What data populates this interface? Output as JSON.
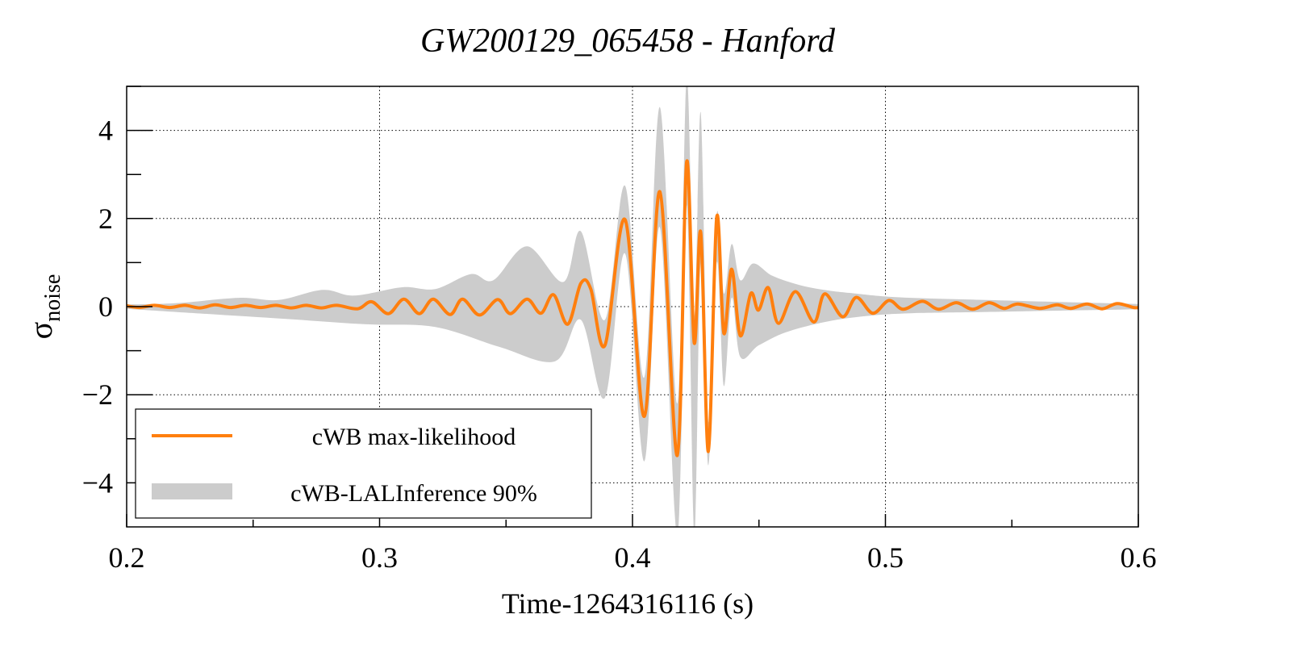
{
  "chart_data": {
    "type": "line",
    "title": "GW200129_065458 - Hanford",
    "xlabel": "Time-1264316116 (s)",
    "ylabel_main": "σ",
    "ylabel_sub": "noise",
    "xlim": [
      0.2,
      0.6
    ],
    "ylim": [
      -5,
      5
    ],
    "xticks": [
      0.2,
      0.3,
      0.4,
      0.5,
      0.6
    ],
    "xtick_labels": [
      "0.2",
      "0.3",
      "0.4",
      "0.5",
      "0.6"
    ],
    "yticks": [
      -4,
      -2,
      0,
      2,
      4
    ],
    "ytick_labels": [
      "−4",
      "−2",
      "0",
      "2",
      "4"
    ],
    "grid": true,
    "legend_position": "bottom-left",
    "colors": {
      "line": "#ff7f0e",
      "band": "#cccccc"
    },
    "series": [
      {
        "name": "cWB max-likelihood",
        "type": "line",
        "points": [
          [
            0.2,
            0.02
          ],
          [
            0.205,
            -0.02
          ],
          [
            0.211,
            0.03
          ],
          [
            0.217,
            -0.02
          ],
          [
            0.223,
            0.03
          ],
          [
            0.229,
            -0.03
          ],
          [
            0.235,
            0.04
          ],
          [
            0.241,
            -0.02
          ],
          [
            0.247,
            0.03
          ],
          [
            0.253,
            -0.02
          ],
          [
            0.259,
            0.03
          ],
          [
            0.265,
            -0.03
          ],
          [
            0.271,
            0.03
          ],
          [
            0.277,
            -0.03
          ],
          [
            0.283,
            0.03
          ],
          [
            0.2913,
            -0.05
          ],
          [
            0.2969,
            0.11
          ],
          [
            0.3035,
            -0.16
          ],
          [
            0.3096,
            0.17
          ],
          [
            0.3157,
            -0.16
          ],
          [
            0.3212,
            0.17
          ],
          [
            0.3279,
            -0.18
          ],
          [
            0.3328,
            0.17
          ],
          [
            0.3395,
            -0.19
          ],
          [
            0.3467,
            0.16
          ],
          [
            0.3517,
            -0.16
          ],
          [
            0.3583,
            0.17
          ],
          [
            0.3638,
            -0.15
          ],
          [
            0.3688,
            0.27
          ],
          [
            0.3744,
            -0.4
          ],
          [
            0.3796,
            0.53
          ],
          [
            0.3835,
            0.4
          ],
          [
            0.3891,
            -0.88
          ],
          [
            0.3971,
            1.97
          ],
          [
            0.4047,
            -2.49
          ],
          [
            0.4108,
            2.61
          ],
          [
            0.4177,
            -3.38
          ],
          [
            0.4214,
            3.28
          ],
          [
            0.4244,
            -0.82
          ],
          [
            0.427,
            1.68
          ],
          [
            0.43,
            -3.29
          ],
          [
            0.4333,
            2.03
          ],
          [
            0.4361,
            -0.6
          ],
          [
            0.4392,
            0.85
          ],
          [
            0.4426,
            -0.66
          ],
          [
            0.4468,
            0.3
          ],
          [
            0.4498,
            -0.08
          ],
          [
            0.4537,
            0.43
          ],
          [
            0.4577,
            -0.38
          ],
          [
            0.4644,
            0.34
          ],
          [
            0.4717,
            -0.35
          ],
          [
            0.476,
            0.29
          ],
          [
            0.4831,
            -0.23
          ],
          [
            0.4885,
            0.21
          ],
          [
            0.495,
            -0.15
          ],
          [
            0.5014,
            0.14
          ],
          [
            0.507,
            -0.06
          ],
          [
            0.5146,
            0.12
          ],
          [
            0.521,
            -0.06
          ],
          [
            0.528,
            0.09
          ],
          [
            0.5345,
            -0.06
          ],
          [
            0.541,
            0.09
          ],
          [
            0.5469,
            -0.04
          ],
          [
            0.5523,
            0.06
          ],
          [
            0.5609,
            -0.04
          ],
          [
            0.5679,
            0.04
          ],
          [
            0.5733,
            -0.04
          ],
          [
            0.5798,
            0.06
          ],
          [
            0.5857,
            -0.05
          ],
          [
            0.5916,
            0.07
          ],
          [
            0.5981,
            -0.02
          ],
          [
            0.6,
            -0.02
          ]
        ]
      },
      {
        "name": "cWB-LALInference 90%",
        "type": "band",
        "upper": [
          [
            0.2,
            0.05
          ],
          [
            0.22,
            0.08
          ],
          [
            0.2443,
            0.2
          ],
          [
            0.26,
            0.15
          ],
          [
            0.2775,
            0.38
          ],
          [
            0.29,
            0.25
          ],
          [
            0.309,
            0.44
          ],
          [
            0.322,
            0.4
          ],
          [
            0.3362,
            0.74
          ],
          [
            0.345,
            0.6
          ],
          [
            0.3583,
            1.37
          ],
          [
            0.3727,
            0.56
          ],
          [
            0.3796,
            1.71
          ],
          [
            0.3891,
            -0.3
          ],
          [
            0.3971,
            2.74
          ],
          [
            0.4047,
            -1.6
          ],
          [
            0.4108,
            4.53
          ],
          [
            0.4177,
            -2.2
          ],
          [
            0.4214,
            5.2
          ],
          [
            0.4244,
            -0.2
          ],
          [
            0.427,
            4.4
          ],
          [
            0.43,
            -2.6
          ],
          [
            0.4333,
            2.1
          ],
          [
            0.4361,
            0.3
          ],
          [
            0.4392,
            1.42
          ],
          [
            0.4426,
            0.6
          ],
          [
            0.4477,
            0.98
          ],
          [
            0.4553,
            0.7
          ],
          [
            0.466,
            0.49
          ],
          [
            0.4768,
            0.37
          ],
          [
            0.4876,
            0.3
          ],
          [
            0.5057,
            0.21
          ],
          [
            0.54,
            0.15
          ],
          [
            0.6,
            0.06
          ]
        ],
        "lower": [
          [
            0.2,
            -0.05
          ],
          [
            0.23,
            -0.16
          ],
          [
            0.2631,
            -0.28
          ],
          [
            0.294,
            -0.4
          ],
          [
            0.3218,
            -0.46
          ],
          [
            0.3472,
            -0.91
          ],
          [
            0.3694,
            -1.24
          ],
          [
            0.3796,
            -0.3
          ],
          [
            0.3891,
            -2.07
          ],
          [
            0.3971,
            1.2
          ],
          [
            0.4047,
            -3.51
          ],
          [
            0.4108,
            1.8
          ],
          [
            0.4177,
            -5.2
          ],
          [
            0.4214,
            2.3
          ],
          [
            0.4244,
            -5.2
          ],
          [
            0.427,
            1.0
          ],
          [
            0.43,
            -3.6
          ],
          [
            0.4333,
            1.0
          ],
          [
            0.4361,
            -1.8
          ],
          [
            0.4392,
            0.2
          ],
          [
            0.4426,
            -1.14
          ],
          [
            0.4499,
            -0.88
          ],
          [
            0.4607,
            -0.58
          ],
          [
            0.4768,
            -0.34
          ],
          [
            0.493,
            -0.21
          ],
          [
            0.51,
            -0.15
          ],
          [
            0.54,
            -0.12
          ],
          [
            0.6,
            -0.06
          ]
        ]
      }
    ]
  }
}
